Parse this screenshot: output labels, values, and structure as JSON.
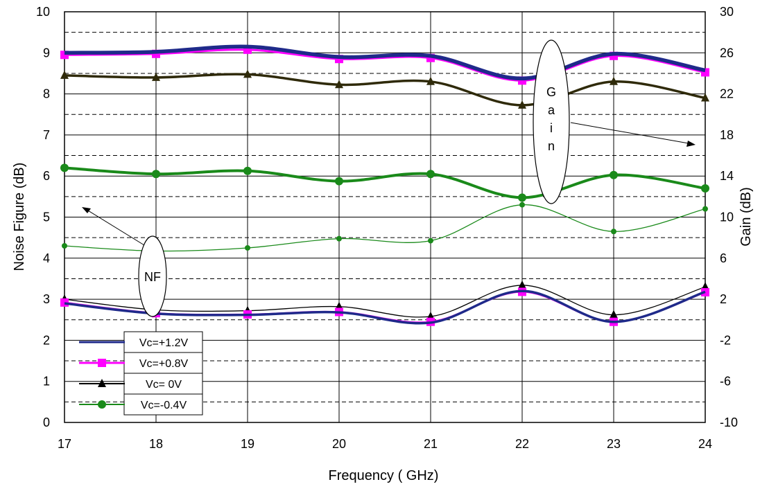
{
  "chart_data": {
    "type": "line",
    "xlabel": "Frequency ( GHz)",
    "ylabel": "Noise Figure (dB)",
    "y2label": "Gain (dB)",
    "xlim": [
      17,
      24
    ],
    "ylim": [
      0,
      10
    ],
    "y2lim": [
      -10,
      30
    ],
    "x": [
      17,
      18,
      19,
      20,
      21,
      22,
      23,
      24
    ],
    "x_ticks": [
      "17",
      "18",
      "19",
      "20",
      "21",
      "22",
      "23",
      "24"
    ],
    "y_ticks": [
      "0",
      "1",
      "2",
      "3",
      "4",
      "5",
      "6",
      "7",
      "8",
      "9",
      "10"
    ],
    "y2_ticks": [
      "-10",
      "-6",
      "-2",
      "2",
      "6",
      "10",
      "14",
      "18",
      "22",
      "26",
      "30"
    ],
    "grid": true,
    "legend_position": "bottom-left",
    "colors": {
      "vc_p12": "#1f2a8a",
      "vc_p08": "#ff00ff",
      "vc_0": "#000000",
      "vc_m04": "#1a8a1a",
      "gain_vc_0": "#2f2a0a"
    },
    "series": [
      {
        "name": "Vc=+1.2V",
        "axis": "left",
        "group": "NF",
        "values": [
          2.9,
          2.65,
          2.62,
          2.68,
          2.43,
          3.2,
          2.45,
          3.18
        ]
      },
      {
        "name": "Vc=+0.8V",
        "axis": "left",
        "group": "NF",
        "values": [
          2.92,
          2.66,
          2.63,
          2.69,
          2.45,
          3.18,
          2.45,
          3.17
        ]
      },
      {
        "name": "Vc= 0V",
        "axis": "left",
        "group": "NF",
        "values": [
          3.0,
          2.74,
          2.72,
          2.82,
          2.58,
          3.34,
          2.62,
          3.3
        ]
      },
      {
        "name": "Vc=-0.4V",
        "axis": "right",
        "group": "NF",
        "values": [
          7.2,
          6.7,
          7.0,
          7.9,
          7.7,
          11.2,
          8.6,
          10.8
        ]
      },
      {
        "name": "Vc=+1.2V",
        "axis": "right",
        "group": "Gain",
        "values": [
          26.0,
          26.1,
          26.6,
          25.6,
          25.7,
          23.5,
          25.9,
          24.3
        ]
      },
      {
        "name": "Vc=+0.8V",
        "axis": "right",
        "group": "Gain",
        "values": [
          25.8,
          25.9,
          26.3,
          25.4,
          25.5,
          23.3,
          25.7,
          24.1
        ]
      },
      {
        "name": "Vc= 0V",
        "axis": "right",
        "group": "Gain",
        "values": [
          23.8,
          23.6,
          23.9,
          22.9,
          23.2,
          20.9,
          23.2,
          21.6
        ]
      },
      {
        "name": "Vc=-0.4V",
        "axis": "right",
        "group": "Gain",
        "values": [
          14.8,
          14.2,
          14.5,
          13.5,
          14.2,
          11.9,
          14.1,
          12.8
        ]
      }
    ],
    "legend": [
      "Vc=+1.2V",
      "Vc=+0.8V",
      "Vc= 0V",
      "Vc=-0.4V"
    ],
    "annotations": [
      "NF",
      "G",
      "a",
      "i",
      "n"
    ]
  }
}
